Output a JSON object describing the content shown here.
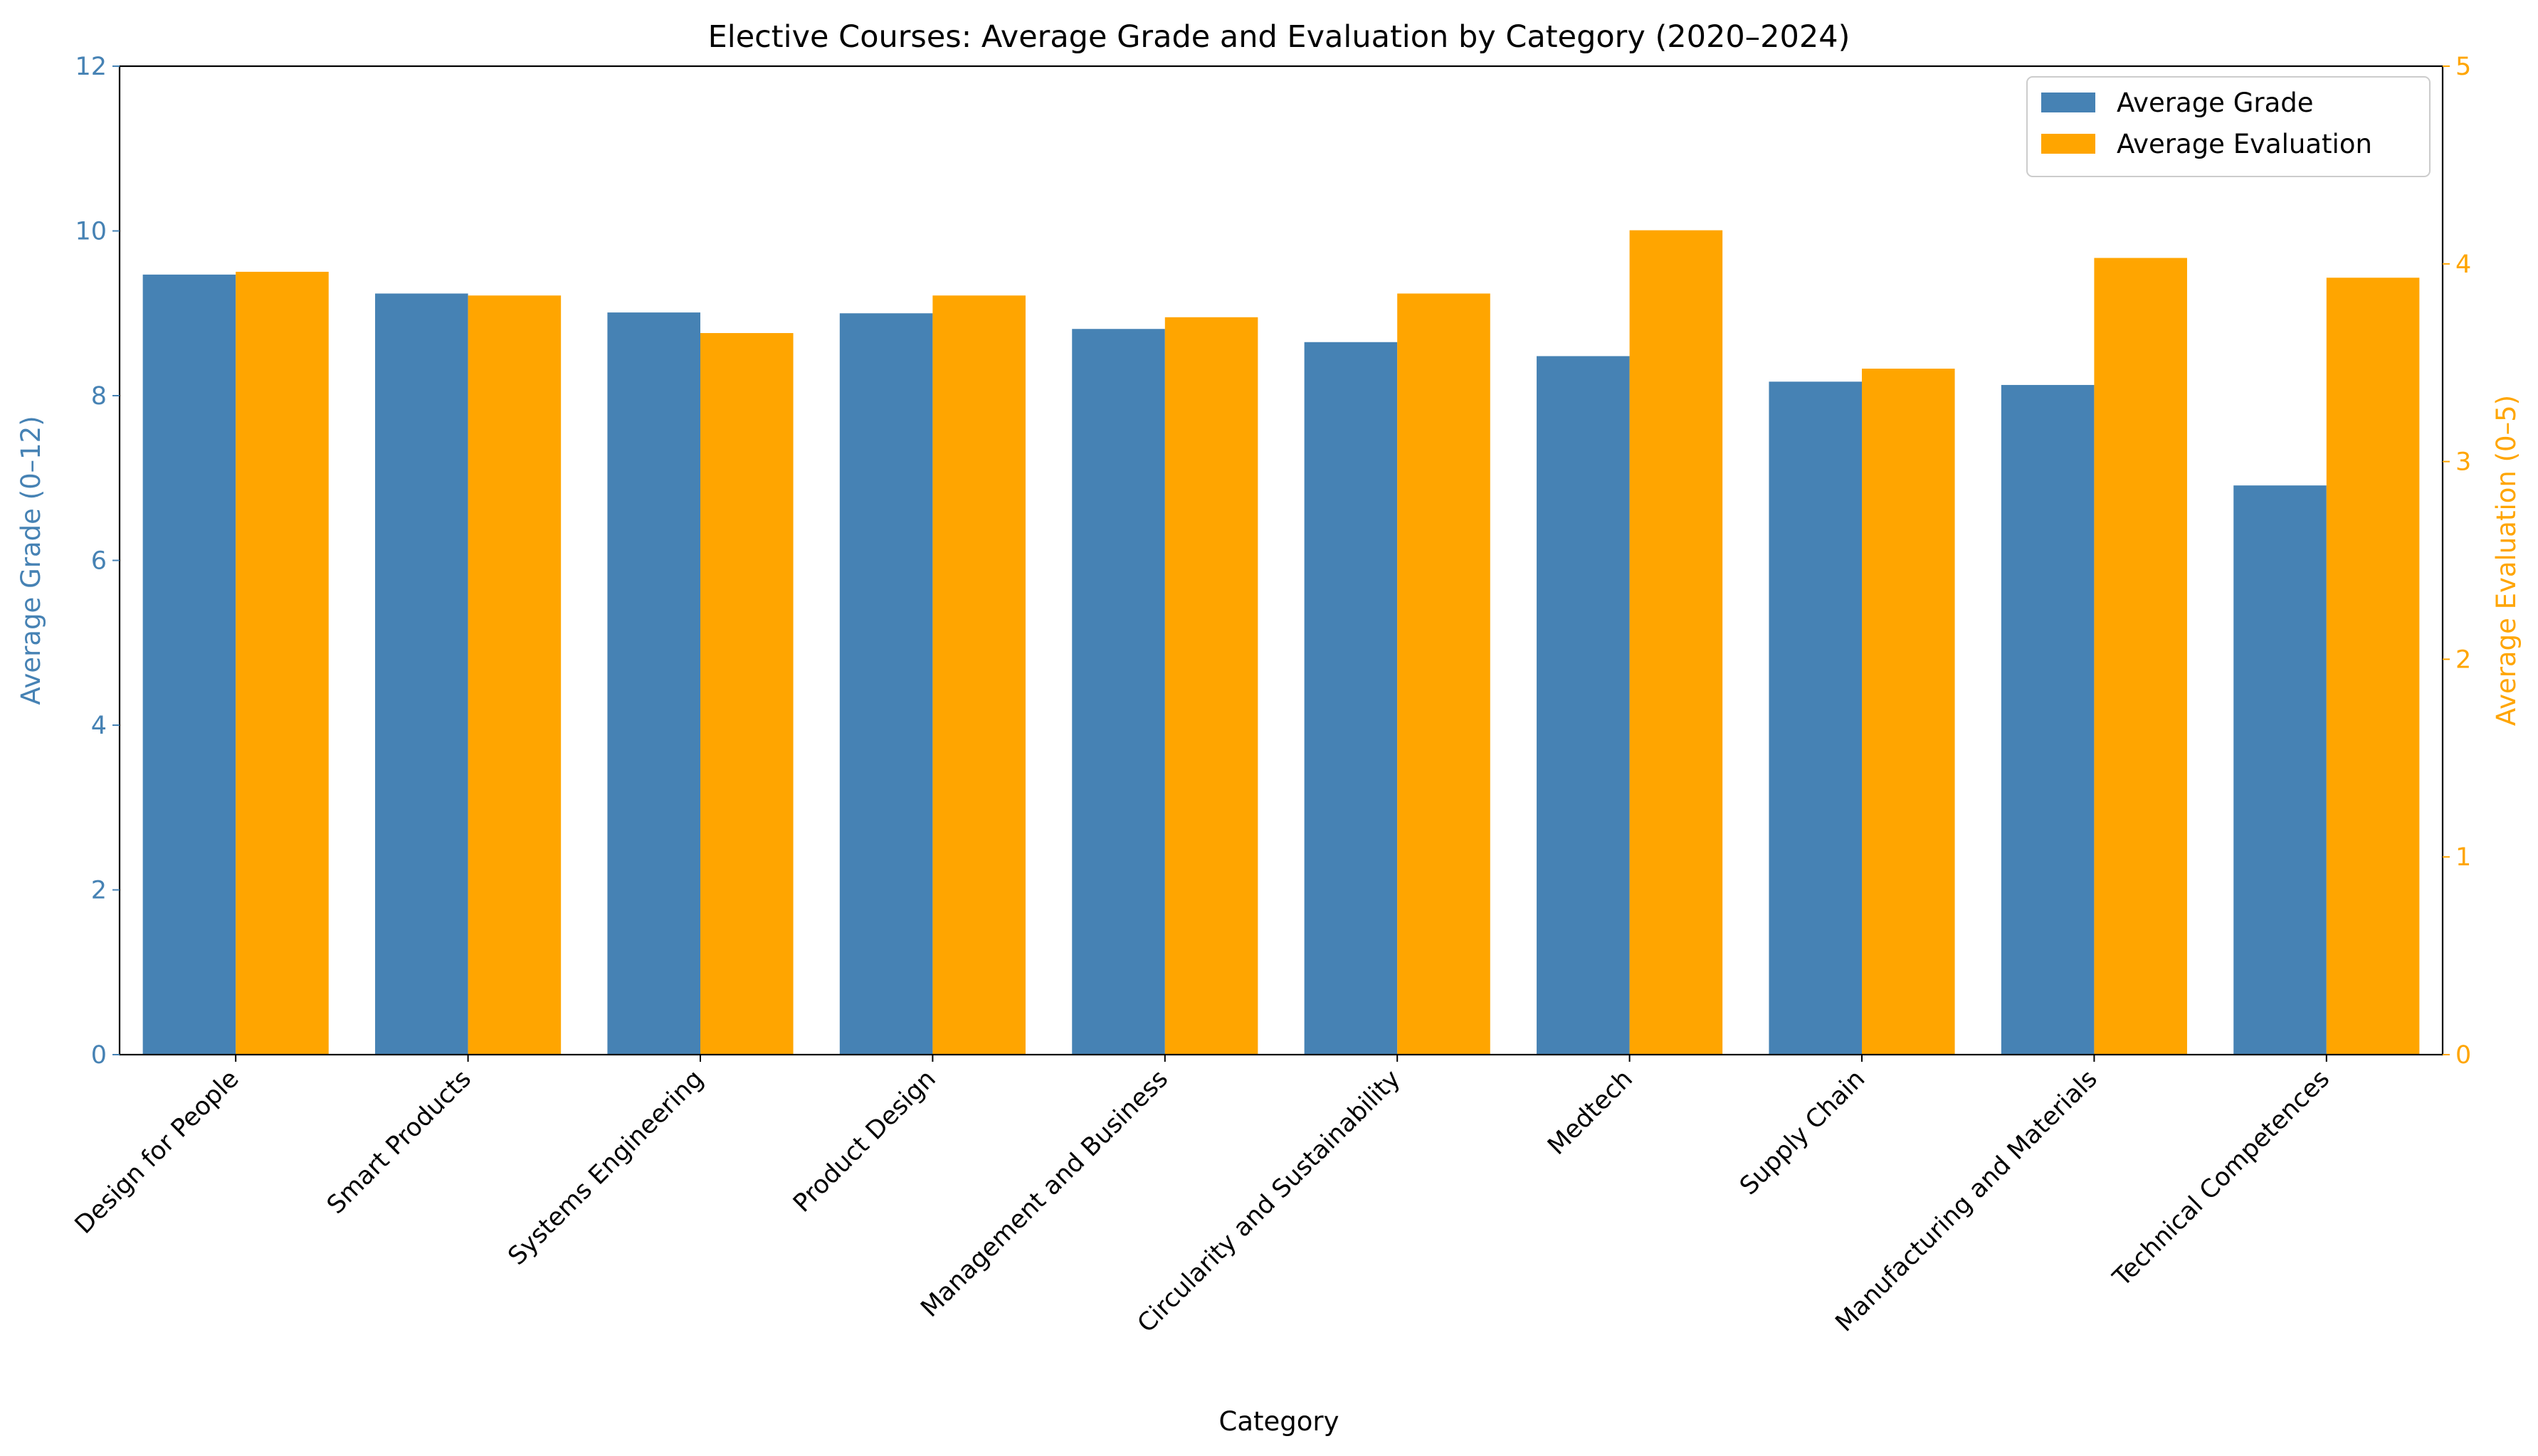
{
  "chart_data": {
    "type": "bar",
    "title": "Elective Courses: Average Grade and Evaluation by Category (2020–2024)",
    "xlabel": "Category",
    "ylabel_left": "Average Grade (0–12)",
    "ylabel_right": "Average Evaluation (0–5)",
    "ylim_left": [
      0,
      12
    ],
    "ylim_right": [
      0,
      5
    ],
    "yticks_left": [
      "0",
      "2",
      "4",
      "6",
      "8",
      "10",
      "12"
    ],
    "yticks_right": [
      "0",
      "1",
      "2",
      "3",
      "4",
      "5"
    ],
    "categories": [
      "Design for People",
      "Smart Products",
      "Systems Engineering",
      "Product Design",
      "Management and Business",
      "Circularity and Sustainability",
      "Medtech",
      "Supply Chain",
      "Manufacturing and Materials",
      "Technical Competences"
    ],
    "series": [
      {
        "name": "Average Grade",
        "axis": "left",
        "color": "#4682B4",
        "values": [
          9.47,
          9.24,
          9.01,
          9.0,
          8.81,
          8.65,
          8.48,
          8.17,
          8.13,
          6.91
        ]
      },
      {
        "name": "Average Evaluation",
        "axis": "right",
        "color": "#FFA500",
        "values": [
          3.96,
          3.84,
          3.65,
          3.84,
          3.73,
          3.85,
          4.17,
          3.47,
          4.03,
          3.93
        ]
      }
    ],
    "legend_position": "top-right",
    "grid": false
  }
}
